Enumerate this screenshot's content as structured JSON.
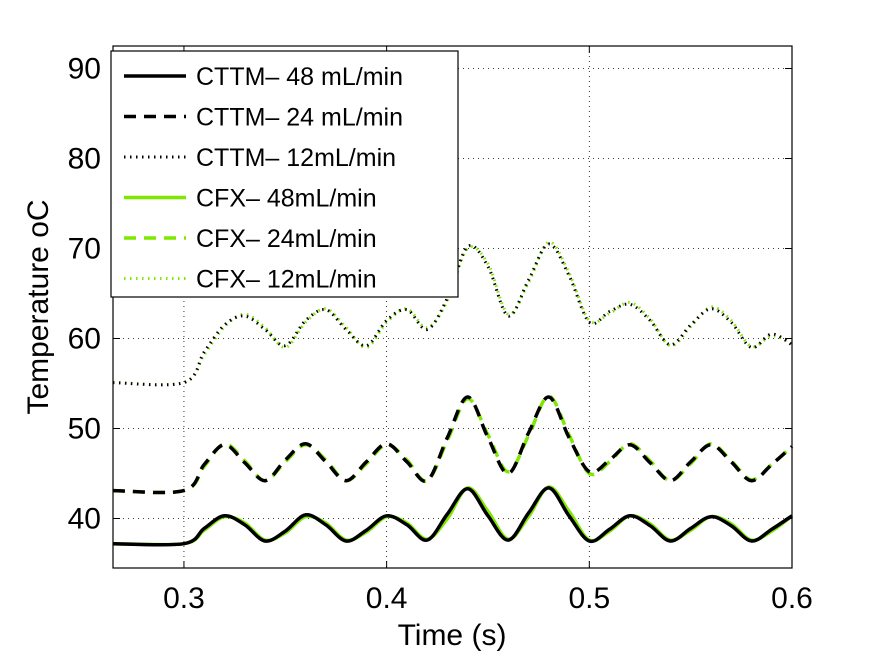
{
  "chart_data": {
    "type": "line",
    "title": "",
    "xlabel": "Time (s)",
    "ylabel": "Temperature oC",
    "xlim": [
      0.265,
      0.6
    ],
    "ylim": [
      34.5,
      92.5
    ],
    "xticks": [
      0.3,
      0.4,
      0.5,
      0.6
    ],
    "xtick_labels": [
      "0.3",
      "0.4",
      "0.5",
      "0.6"
    ],
    "yticks": [
      40,
      50,
      60,
      70,
      80,
      90
    ],
    "ytick_labels": [
      "40",
      "50",
      "60",
      "70",
      "80",
      "90"
    ],
    "grid": true,
    "legend_position": "top-left",
    "colors": {
      "cttm": "#000000",
      "cfx": "#7ee800"
    },
    "series": [
      {
        "name": "CTTM– 48 mL/min",
        "group": "cttm",
        "style": "solid",
        "x": [
          0.265,
          0.3,
          0.31,
          0.32,
          0.33,
          0.34,
          0.35,
          0.36,
          0.37,
          0.38,
          0.39,
          0.4,
          0.41,
          0.42,
          0.43,
          0.44,
          0.45,
          0.46,
          0.47,
          0.48,
          0.49,
          0.5,
          0.51,
          0.52,
          0.53,
          0.54,
          0.55,
          0.56,
          0.57,
          0.58,
          0.59,
          0.6
        ],
        "values": [
          37.2,
          37.2,
          38.9,
          40.3,
          39.3,
          37.5,
          38.6,
          40.4,
          39.3,
          37.5,
          38.7,
          40.3,
          39.3,
          37.6,
          40.5,
          43.3,
          40.3,
          37.6,
          40.6,
          43.4,
          40.3,
          37.5,
          38.8,
          40.3,
          39.2,
          37.5,
          38.9,
          40.2,
          39.2,
          37.5,
          38.8,
          40.3
        ]
      },
      {
        "name": "CTTM– 24 mL/min",
        "group": "cttm",
        "style": "dashed",
        "x": [
          0.265,
          0.3,
          0.31,
          0.32,
          0.33,
          0.34,
          0.35,
          0.36,
          0.37,
          0.38,
          0.39,
          0.4,
          0.41,
          0.42,
          0.43,
          0.44,
          0.45,
          0.46,
          0.47,
          0.48,
          0.49,
          0.5,
          0.51,
          0.52,
          0.53,
          0.54,
          0.55,
          0.56,
          0.57,
          0.58,
          0.59,
          0.6
        ],
        "values": [
          43.1,
          43.1,
          46.0,
          48.2,
          46.2,
          44.2,
          46.5,
          48.3,
          46.3,
          44.2,
          46.3,
          48.3,
          46.3,
          44.2,
          49.0,
          53.5,
          49.0,
          45.0,
          49.5,
          53.5,
          49.0,
          45.2,
          46.5,
          48.2,
          46.2,
          44.2,
          46.3,
          48.2,
          46.3,
          44.2,
          46.0,
          48.0
        ]
      },
      {
        "name": "CTTM– 12mL/min",
        "group": "cttm",
        "style": "dotted",
        "x": [
          0.265,
          0.3,
          0.31,
          0.32,
          0.33,
          0.34,
          0.35,
          0.36,
          0.37,
          0.38,
          0.39,
          0.4,
          0.41,
          0.42,
          0.43,
          0.44,
          0.45,
          0.46,
          0.47,
          0.48,
          0.49,
          0.5,
          0.51,
          0.52,
          0.53,
          0.54,
          0.55,
          0.56,
          0.57,
          0.58,
          0.59,
          0.6
        ],
        "values": [
          55.1,
          55.1,
          58.5,
          61.5,
          62.5,
          61.0,
          59.2,
          62.0,
          63.2,
          61.0,
          59.2,
          62.0,
          63.2,
          61.0,
          64.5,
          70.2,
          68.0,
          62.5,
          66.5,
          70.5,
          67.0,
          61.8,
          63.0,
          63.8,
          62.0,
          59.3,
          61.5,
          63.3,
          61.8,
          59.0,
          60.5,
          59.3
        ]
      },
      {
        "name": "CFX– 48mL/min",
        "group": "cfx",
        "style": "solid",
        "x": [
          0.265,
          0.3,
          0.31,
          0.32,
          0.33,
          0.34,
          0.35,
          0.36,
          0.37,
          0.38,
          0.39,
          0.4,
          0.41,
          0.42,
          0.43,
          0.44,
          0.45,
          0.46,
          0.47,
          0.48,
          0.49,
          0.5,
          0.51,
          0.52,
          0.53,
          0.54,
          0.55,
          0.56,
          0.57,
          0.58,
          0.59,
          0.6
        ],
        "values": [
          37.2,
          37.2,
          38.7,
          40.2,
          39.5,
          37.6,
          38.4,
          40.2,
          39.5,
          37.6,
          38.5,
          40.2,
          39.5,
          37.7,
          40.0,
          43.4,
          40.8,
          37.7,
          40.2,
          43.5,
          40.8,
          37.6,
          38.6,
          40.3,
          39.4,
          37.6,
          38.7,
          40.2,
          39.4,
          37.6,
          38.6,
          40.3
        ]
      },
      {
        "name": "CFX– 24mL/min",
        "group": "cfx",
        "style": "dashed",
        "x": [
          0.265,
          0.3,
          0.31,
          0.32,
          0.33,
          0.34,
          0.35,
          0.36,
          0.37,
          0.38,
          0.39,
          0.4,
          0.41,
          0.42,
          0.43,
          0.44,
          0.45,
          0.46,
          0.47,
          0.48,
          0.49,
          0.5,
          0.51,
          0.52,
          0.53,
          0.54,
          0.55,
          0.56,
          0.57,
          0.58,
          0.59,
          0.6
        ],
        "values": [
          43.1,
          43.1,
          45.8,
          48.3,
          46.4,
          44.2,
          46.3,
          48.2,
          46.5,
          44.2,
          46.1,
          48.2,
          46.5,
          44.2,
          48.7,
          53.3,
          49.3,
          45.2,
          49.2,
          53.6,
          49.3,
          45.0,
          46.3,
          48.3,
          46.4,
          44.2,
          46.1,
          48.3,
          46.4,
          44.3,
          46.0,
          48.0
        ]
      },
      {
        "name": "CFX– 12mL/min",
        "group": "cfx",
        "style": "dotted",
        "x": [
          0.265,
          0.3,
          0.31,
          0.32,
          0.33,
          0.34,
          0.35,
          0.36,
          0.37,
          0.38,
          0.39,
          0.4,
          0.41,
          0.42,
          0.43,
          0.44,
          0.45,
          0.46,
          0.47,
          0.48,
          0.49,
          0.5,
          0.51,
          0.52,
          0.53,
          0.54,
          0.55,
          0.56,
          0.57,
          0.58,
          0.59,
          0.6
        ],
        "values": [
          55.1,
          55.1,
          58.2,
          61.3,
          62.7,
          61.2,
          59.0,
          61.8,
          63.3,
          61.2,
          59.0,
          61.8,
          63.3,
          61.2,
          64.2,
          70.0,
          68.3,
          62.7,
          66.2,
          70.7,
          67.3,
          62.0,
          62.8,
          64.0,
          62.2,
          59.2,
          61.3,
          63.5,
          62.0,
          59.1,
          60.3,
          59.5
        ]
      }
    ]
  }
}
